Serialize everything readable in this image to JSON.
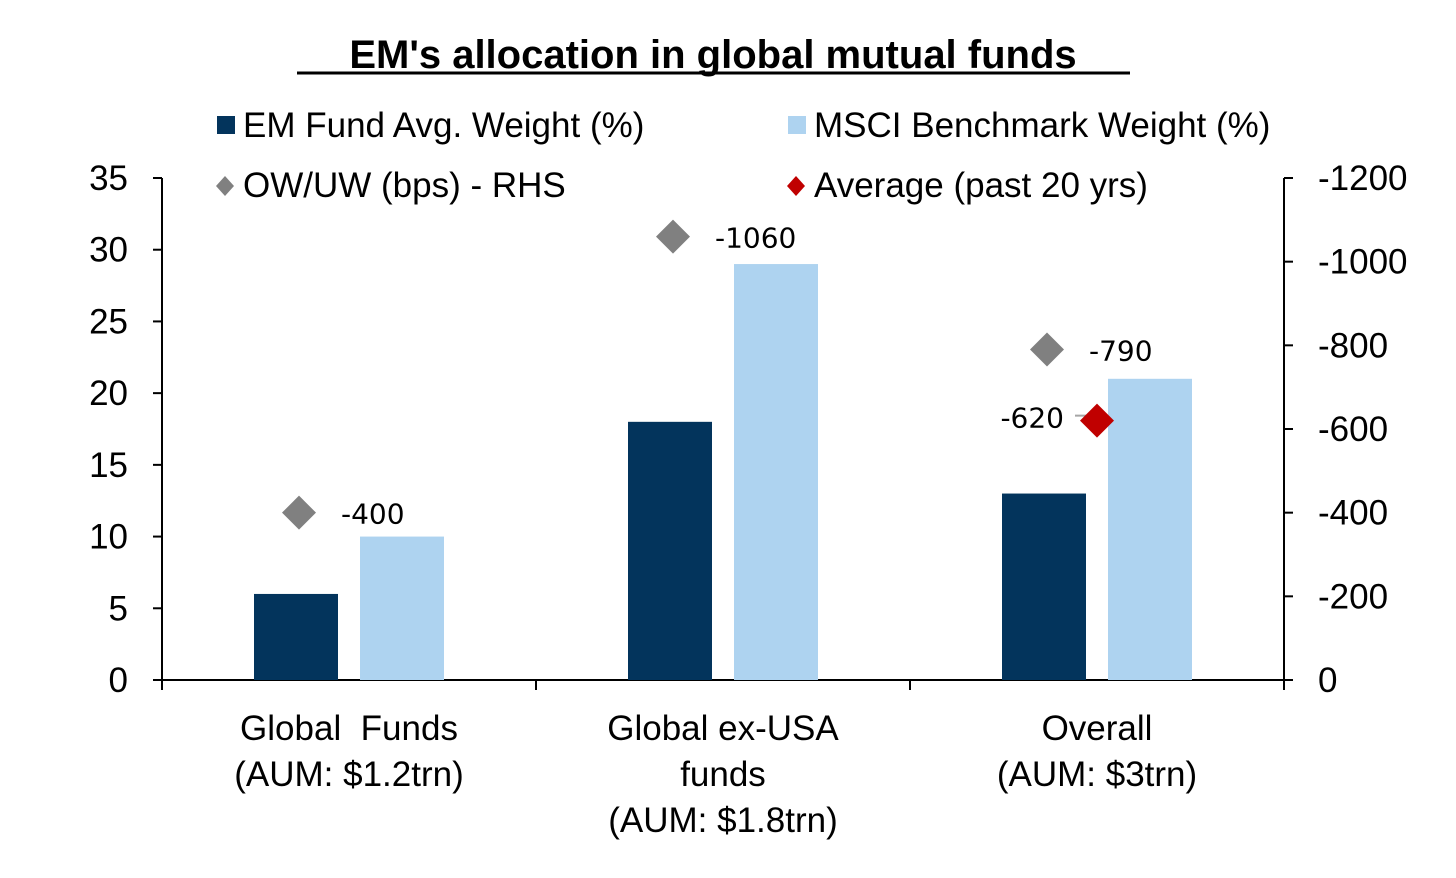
{
  "chart_data": {
    "type": "bar",
    "title": "EM's allocation in global mutual funds",
    "categories": [
      [
        "Global  Funds",
        "(AUM: $1.2trn)"
      ],
      [
        "Global ex-USA",
        "funds",
        "(AUM: $1.8trn)"
      ],
      [
        "Overall",
        "(AUM: $3trn)"
      ]
    ],
    "series": [
      {
        "name": "EM Fund Avg. Weight (%)",
        "axis": "left",
        "kind": "bar",
        "color": "#03345c",
        "values": [
          6,
          18,
          13
        ]
      },
      {
        "name": "MSCI Benchmark Weight (%)",
        "axis": "left",
        "kind": "bar",
        "color": "#aed3f0",
        "values": [
          10,
          29,
          21
        ]
      },
      {
        "name": "OW/UW (bps) - RHS",
        "axis": "right",
        "kind": "marker",
        "color": "#808080",
        "values": [
          -400,
          -1060,
          -790
        ],
        "labels": [
          "-400",
          "-1060",
          "-790"
        ]
      },
      {
        "name": "Average (past 20 yrs)",
        "axis": "right",
        "kind": "marker",
        "color": "#c00000",
        "values": [
          null,
          null,
          -620
        ],
        "labels": [
          null,
          null,
          "-620"
        ]
      }
    ],
    "left_axis": {
      "min": 0,
      "max": 35,
      "step": 5,
      "ticks": [
        "0",
        "5",
        "10",
        "15",
        "20",
        "25",
        "30",
        "35"
      ]
    },
    "right_axis": {
      "min": 0,
      "max": -1200,
      "step": -200,
      "inverted": true,
      "ticks": [
        "0",
        "-200",
        "-400",
        "-600",
        "-800",
        "-1000",
        "-1200"
      ]
    },
    "legend_position": "top",
    "grid": false
  }
}
